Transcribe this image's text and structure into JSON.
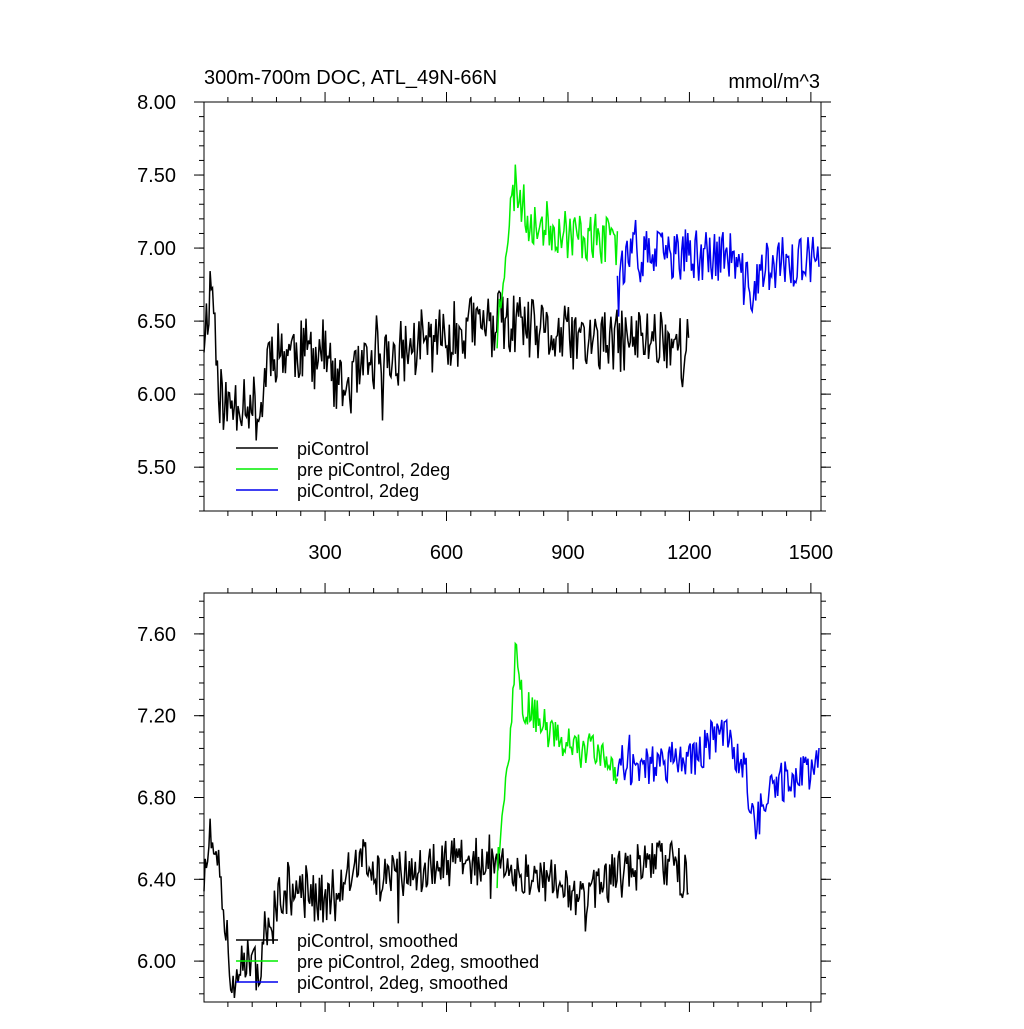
{
  "chart_data": [
    {
      "type": "line",
      "title": "300m-700m DOC, ATL_49N-66N",
      "units": "mmol/m^3",
      "xlim": [
        1,
        1525
      ],
      "ylim": [
        5.2,
        8.0
      ],
      "yticks": [
        5.5,
        6.0,
        6.5,
        7.0,
        7.5,
        8.0
      ],
      "ytick_labels": [
        "5.50",
        "6.00",
        "6.50",
        "7.00",
        "7.50",
        "8.00"
      ],
      "xticks": [
        300,
        600,
        900,
        1200,
        1500
      ],
      "xtick_labels": [
        "300",
        "600",
        "900",
        "1200",
        "1500"
      ],
      "legend": [
        "piControl",
        "pre piControl, 2deg",
        "piControl, 2deg"
      ],
      "series": [
        {
          "name": "piControl",
          "color": "#000000",
          "x_start": 1,
          "x_end": 1200,
          "base": 6.05,
          "trend": 0.35,
          "noise": 0.22,
          "seed": 11,
          "points": [
            [
              1,
              6.4
            ],
            [
              20,
              6.8
            ],
            [
              40,
              6.0
            ],
            [
              60,
              5.9
            ],
            [
              100,
              6.0
            ],
            [
              140,
              5.85
            ],
            [
              160,
              6.3
            ],
            [
              300,
              6.3
            ],
            [
              330,
              6.0
            ],
            [
              420,
              6.2
            ],
            [
              500,
              6.3
            ],
            [
              650,
              6.45
            ],
            [
              720,
              6.5
            ],
            [
              850,
              6.4
            ],
            [
              1000,
              6.35
            ],
            [
              1130,
              6.4
            ],
            [
              1200,
              6.3
            ]
          ]
        },
        {
          "name": "pre piControl, 2deg",
          "color": "#00ee00",
          "x_start": 725,
          "x_end": 1022,
          "base": 7.1,
          "trend": -0.1,
          "noise": 0.17,
          "seed": 23,
          "points": [
            [
              725,
              6.4
            ],
            [
              745,
              7.0
            ],
            [
              770,
              7.45
            ],
            [
              800,
              7.2
            ],
            [
              900,
              7.1
            ],
            [
              1000,
              7.05
            ],
            [
              1022,
              7.0
            ]
          ]
        },
        {
          "name": "piControl, 2deg",
          "color": "#0000ee",
          "x_start": 1022,
          "x_end": 1522,
          "base": 6.9,
          "trend": 0.05,
          "noise": 0.18,
          "seed": 37,
          "points": [
            [
              1022,
              6.9
            ],
            [
              1100,
              6.95
            ],
            [
              1200,
              6.95
            ],
            [
              1300,
              6.95
            ],
            [
              1350,
              6.7
            ],
            [
              1400,
              6.9
            ],
            [
              1522,
              6.9
            ]
          ]
        }
      ]
    },
    {
      "type": "line",
      "title": "",
      "xlim": [
        1,
        1525
      ],
      "ylim": [
        5.8,
        7.8
      ],
      "yticks": [
        6.0,
        6.4,
        6.8,
        7.2,
        7.6
      ],
      "ytick_labels": [
        "6.00",
        "6.40",
        "6.80",
        "7.20",
        "7.60"
      ],
      "xticks": [
        300,
        600,
        900,
        1200,
        1500
      ],
      "xtick_labels": [],
      "legend": [
        "piControl, smoothed",
        "pre piControl, 2deg, smoothed",
        "piControl, 2deg, smoothed"
      ],
      "series": [
        {
          "name": "piControl, smoothed",
          "color": "#000000",
          "x_start": 1,
          "x_end": 1200,
          "base": 6.1,
          "trend": 0.35,
          "noise": 0.12,
          "seed": 51,
          "points": [
            [
              1,
              6.4
            ],
            [
              15,
              6.6
            ],
            [
              40,
              6.4
            ],
            [
              70,
              5.9
            ],
            [
              100,
              6.0
            ],
            [
              130,
              5.95
            ],
            [
              160,
              6.1
            ],
            [
              190,
              6.35
            ],
            [
              300,
              6.3
            ],
            [
              360,
              6.45
            ],
            [
              400,
              6.5
            ],
            [
              430,
              6.4
            ],
            [
              520,
              6.45
            ],
            [
              650,
              6.5
            ],
            [
              720,
              6.45
            ],
            [
              850,
              6.4
            ],
            [
              950,
              6.3
            ],
            [
              1000,
              6.4
            ],
            [
              1130,
              6.5
            ],
            [
              1200,
              6.4
            ]
          ]
        },
        {
          "name": "pre piControl, 2deg, smoothed",
          "color": "#00ee00",
          "x_start": 725,
          "x_end": 1022,
          "base": 7.1,
          "trend": -0.1,
          "noise": 0.09,
          "seed": 63,
          "points": [
            [
              725,
              6.4
            ],
            [
              745,
              6.9
            ],
            [
              760,
              7.15
            ],
            [
              770,
              7.5
            ],
            [
              790,
              7.25
            ],
            [
              850,
              7.15
            ],
            [
              900,
              7.05
            ],
            [
              1000,
              7.0
            ],
            [
              1022,
              6.9
            ]
          ]
        },
        {
          "name": "piControl, 2deg, smoothed",
          "color": "#0000ee",
          "x_start": 1022,
          "x_end": 1522,
          "base": 6.95,
          "trend": 0.05,
          "noise": 0.1,
          "seed": 77,
          "points": [
            [
              1022,
              6.95
            ],
            [
              1100,
              6.95
            ],
            [
              1220,
              7.0
            ],
            [
              1280,
              7.15
            ],
            [
              1340,
              6.9
            ],
            [
              1360,
              6.65
            ],
            [
              1400,
              6.85
            ],
            [
              1522,
              6.95
            ]
          ]
        }
      ]
    }
  ]
}
